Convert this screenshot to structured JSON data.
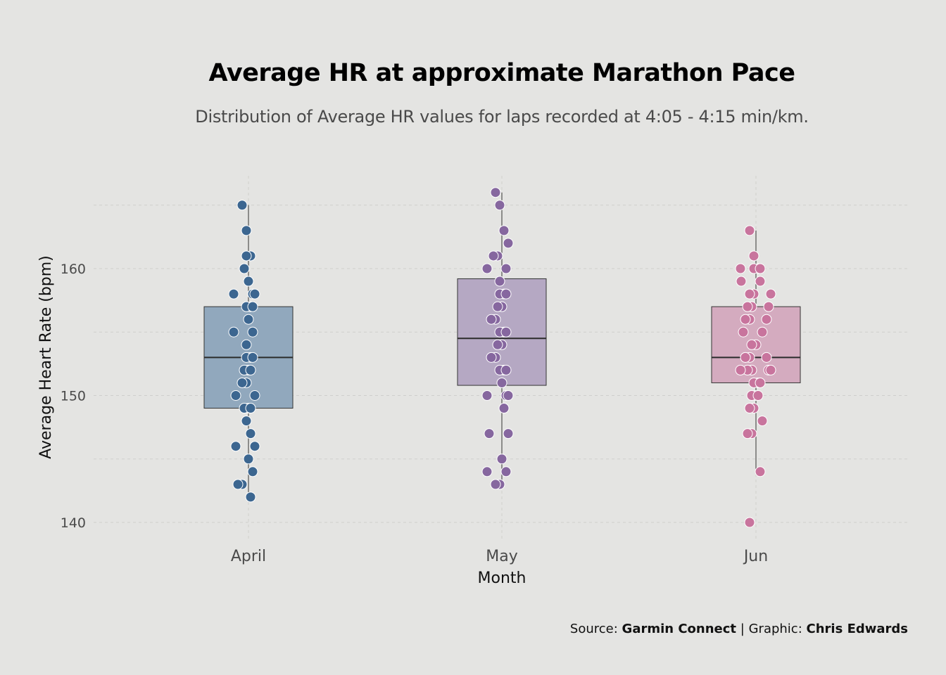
{
  "caption": {
    "source_label": "Source:",
    "source": "Garmin Connect",
    "separator": "|",
    "graphic_label": "Graphic:",
    "graphic": "Chris Edwards"
  },
  "chart_data": {
    "type": "box",
    "title": "Average HR at approximate Marathon Pace",
    "subtitle": "Distribution of Average HR values for laps recorded at 4:05 - 4:15 min/km.",
    "xlabel": "Month",
    "ylabel": "Average Heart Rate (bpm)",
    "ylim": [
      138.5,
      166.5
    ],
    "yticks": [
      140,
      150,
      160
    ],
    "grid": true,
    "categories": [
      "April",
      "May",
      "Jun"
    ],
    "colors": [
      "#3c6690",
      "#86679f",
      "#c8749d"
    ],
    "box_fill_colors": [
      "#91a8bd",
      "#b5a8c3",
      "#d4abbf"
    ],
    "series": [
      {
        "category": "April",
        "box": {
          "q1": 149,
          "median": 153,
          "q3": 157,
          "whisker_low": 142,
          "whisker_high": 165
        },
        "points": [
          165,
          163,
          161,
          161,
          160,
          159,
          158,
          158,
          158,
          157,
          157,
          157,
          156,
          155,
          155,
          154,
          153,
          153,
          153,
          152,
          152,
          152,
          151,
          151,
          150,
          150,
          149,
          149,
          149,
          148,
          147,
          146,
          146,
          145,
          144,
          143,
          143,
          142
        ]
      },
      {
        "category": "May",
        "box": {
          "q1": 150.8,
          "median": 154.5,
          "q3": 159.2,
          "whisker_low": 143,
          "whisker_high": 166
        },
        "points": [
          166,
          165,
          163,
          162,
          161,
          161,
          160,
          160,
          159,
          158,
          158,
          158,
          157,
          157,
          156,
          156,
          155,
          155,
          155,
          154,
          154,
          153,
          153,
          152,
          152,
          152,
          151,
          150,
          150,
          150,
          149,
          147,
          147,
          145,
          144,
          144,
          143,
          143
        ]
      },
      {
        "category": "Jun",
        "box": {
          "q1": 151,
          "median": 153,
          "q3": 157,
          "whisker_low": 144,
          "whisker_high": 163
        },
        "points": [
          163,
          161,
          160,
          160,
          160,
          160,
          159,
          159,
          158,
          158,
          158,
          157,
          157,
          157,
          156,
          156,
          156,
          155,
          155,
          154,
          154,
          153,
          153,
          153,
          153,
          152,
          152,
          152,
          152,
          152,
          151,
          151,
          151,
          150,
          150,
          150,
          149,
          149,
          148,
          147,
          147,
          144,
          140
        ]
      }
    ]
  }
}
